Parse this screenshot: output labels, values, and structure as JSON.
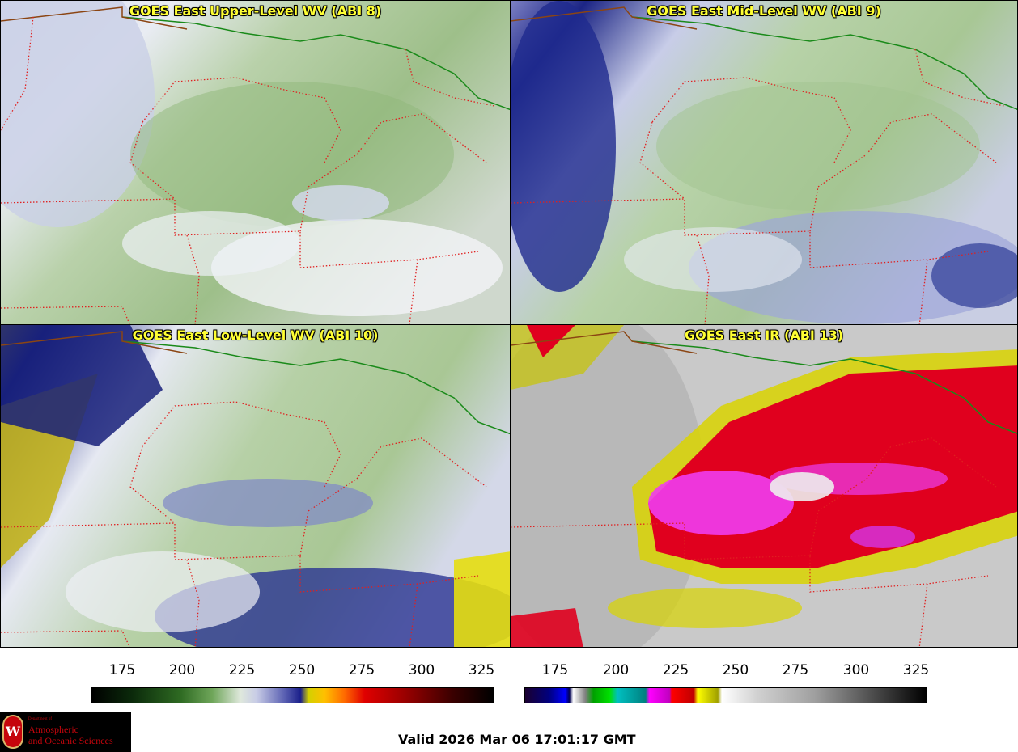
{
  "panels": [
    {
      "title": "GOES East Upper-Level WV (ABI 8)",
      "style": "wv-upper"
    },
    {
      "title": "GOES East Mid-Level WV (ABI 9)",
      "style": "wv-mid"
    },
    {
      "title": "GOES East Low-Level WV (ABI 10)",
      "style": "wv-low"
    },
    {
      "title": "GOES East IR (ABI 13)",
      "style": "ir"
    }
  ],
  "colorbars": {
    "wv": {
      "ticks": [
        "175",
        "200",
        "225",
        "250",
        "275",
        "300",
        "325"
      ]
    },
    "ir": {
      "ticks": [
        "175",
        "200",
        "225",
        "250",
        "275",
        "300",
        "325"
      ]
    }
  },
  "logo": {
    "dept": "Department of",
    "line1": "Atmospheric",
    "line2": "and Oceanic Sciences",
    "seal_letter": "W"
  },
  "valid_time": "Valid 2026 Mar 06 17:01:17 GMT",
  "colors": {
    "title_yellow": "#ffff33",
    "state_border": "#e02020",
    "country_border": "#8b4513",
    "water_border": "#1a8a1a"
  }
}
